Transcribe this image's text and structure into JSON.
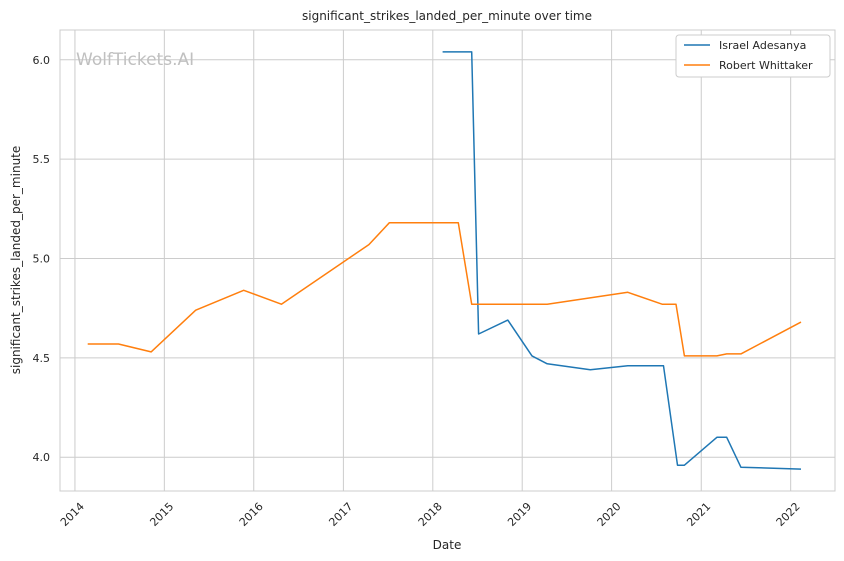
{
  "chart_data": {
    "type": "line",
    "title": "significant_strikes_landed_per_minute over time",
    "xlabel": "Date",
    "ylabel": "significant_strikes_landed_per_minute",
    "watermark": "WolfTickets.AI",
    "x_ticks": [
      "2014",
      "2015",
      "2016",
      "2017",
      "2018",
      "2019",
      "2020",
      "2021",
      "2022"
    ],
    "y_ticks": [
      "4.0",
      "4.5",
      "5.0",
      "5.5",
      "6.0"
    ],
    "xlim": [
      "2013-11-01",
      "2022-07-01"
    ],
    "ylim": [
      3.83,
      6.15
    ],
    "grid": true,
    "legend_position": "top-right",
    "series": [
      {
        "name": "Israel Adesanya",
        "color": "#1f77b4",
        "points": [
          [
            "2018-02-10",
            6.04
          ],
          [
            "2018-06-09",
            6.04
          ],
          [
            "2018-07-07",
            4.62
          ],
          [
            "2018-11-03",
            4.69
          ],
          [
            "2019-02-10",
            4.51
          ],
          [
            "2019-04-13",
            4.47
          ],
          [
            "2019-10-06",
            4.44
          ],
          [
            "2020-03-07",
            4.46
          ],
          [
            "2020-07-31",
            4.46
          ],
          [
            "2020-09-26",
            3.96
          ],
          [
            "2020-10-24",
            3.96
          ],
          [
            "2021-03-06",
            4.1
          ],
          [
            "2021-04-15",
            4.1
          ],
          [
            "2021-06-12",
            3.95
          ],
          [
            "2022-02-12",
            3.94
          ]
        ]
      },
      {
        "name": "Robert Whittaker",
        "color": "#ff7f0e",
        "points": [
          [
            "2014-02-22",
            4.57
          ],
          [
            "2014-06-28",
            4.57
          ],
          [
            "2014-11-08",
            4.53
          ],
          [
            "2015-05-09",
            4.74
          ],
          [
            "2015-11-21",
            4.84
          ],
          [
            "2016-04-23",
            4.77
          ],
          [
            "2017-04-15",
            5.07
          ],
          [
            "2017-07-08",
            5.18
          ],
          [
            "2018-04-15",
            5.18
          ],
          [
            "2018-06-09",
            4.77
          ],
          [
            "2019-04-13",
            4.77
          ],
          [
            "2020-03-07",
            4.83
          ],
          [
            "2020-07-25",
            4.77
          ],
          [
            "2020-09-20",
            4.77
          ],
          [
            "2020-10-24",
            4.51
          ],
          [
            "2021-03-06",
            4.51
          ],
          [
            "2021-04-15",
            4.52
          ],
          [
            "2021-06-12",
            4.52
          ],
          [
            "2022-02-12",
            4.68
          ]
        ]
      }
    ]
  }
}
